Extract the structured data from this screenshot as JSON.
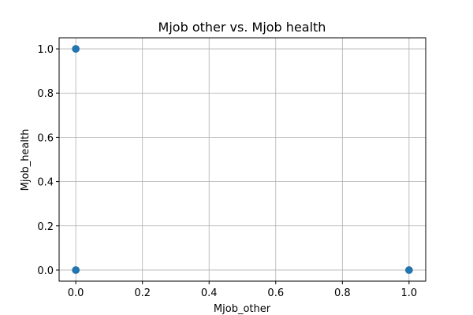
{
  "chart_data": {
    "type": "scatter",
    "title": "Mjob other vs. Mjob health",
    "xlabel": "Mjob_other",
    "ylabel": "Mjob_health",
    "xlim": [
      -0.05,
      1.05
    ],
    "ylim": [
      -0.05,
      1.05
    ],
    "xticks": [
      0.0,
      0.2,
      0.4,
      0.6,
      0.8,
      1.0
    ],
    "yticks": [
      0.0,
      0.2,
      0.4,
      0.6,
      0.8,
      1.0
    ],
    "x_tick_labels": [
      "0.0",
      "0.2",
      "0.4",
      "0.6",
      "0.8",
      "1.0"
    ],
    "y_tick_labels": [
      "0.0",
      "0.2",
      "0.4",
      "0.6",
      "0.8",
      "1.0"
    ],
    "grid": true,
    "marker_color": "#1f77b4",
    "points": [
      {
        "x": 0,
        "y": 1
      },
      {
        "x": 0,
        "y": 0
      },
      {
        "x": 1,
        "y": 0
      }
    ]
  }
}
